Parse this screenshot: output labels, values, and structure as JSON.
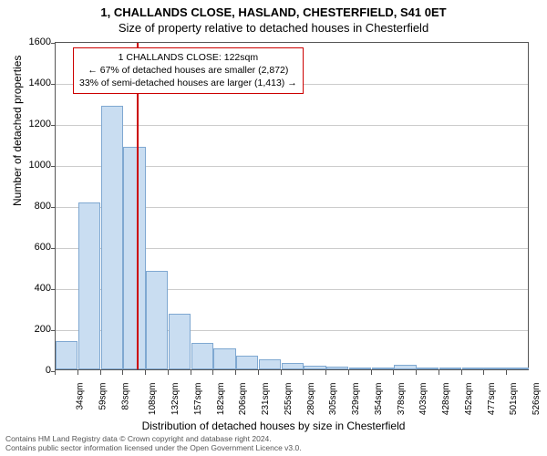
{
  "title": {
    "line1": "1, CHALLANDS CLOSE, HASLAND, CHESTERFIELD, S41 0ET",
    "line2": "Size of property relative to detached houses in Chesterfield"
  },
  "chart": {
    "type": "histogram",
    "x_labels": [
      "34sqm",
      "59sqm",
      "83sqm",
      "108sqm",
      "132sqm",
      "157sqm",
      "182sqm",
      "206sqm",
      "231sqm",
      "255sqm",
      "280sqm",
      "305sqm",
      "329sqm",
      "354sqm",
      "378sqm",
      "403sqm",
      "428sqm",
      "452sqm",
      "477sqm",
      "501sqm",
      "526sqm"
    ],
    "values": [
      140,
      815,
      1285,
      1085,
      480,
      270,
      128,
      102,
      65,
      48,
      32,
      18,
      12,
      9,
      6,
      22,
      4,
      3,
      2,
      2,
      2
    ],
    "bar_fill": "#c9ddf1",
    "bar_stroke": "#7fa8d1",
    "reference_line_color": "#cc0000",
    "reference_index": 3.6,
    "ylim": [
      0,
      1600
    ],
    "ytick_step": 200,
    "y_axis_label": "Number of detached properties",
    "x_axis_label": "Distribution of detached houses by size in Chesterfield",
    "grid_color": "#cccccc",
    "background": "#ffffff",
    "tick_font_size": 11,
    "label_font_size": 12,
    "title_font_size": 13
  },
  "annotation": {
    "line1": "1 CHALLANDS CLOSE: 122sqm",
    "line2": "← 67% of detached houses are smaller (2,872)",
    "line3": "33% of semi-detached houses are larger (1,413) →",
    "border_color": "#cc0000"
  },
  "footer": {
    "line1": "Contains HM Land Registry data © Crown copyright and database right 2024.",
    "line2": "Contains public sector information licensed under the Open Government Licence v3.0."
  }
}
